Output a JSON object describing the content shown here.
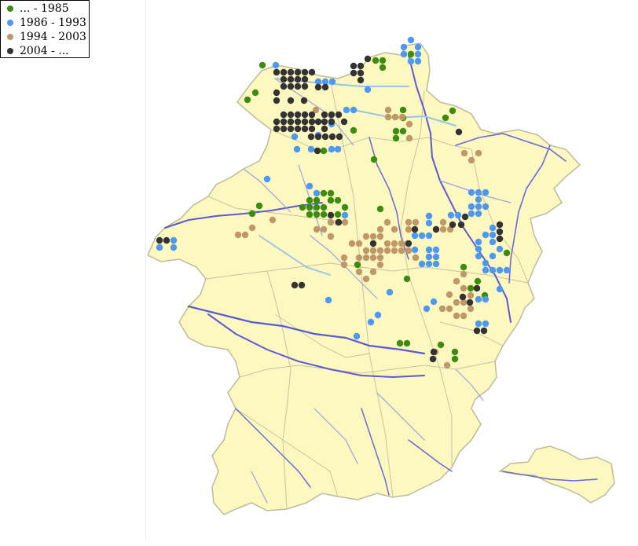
{
  "legend": {
    "items": [
      {
        "label": "... - 1985",
        "color": "#3c8c10"
      },
      {
        "label": "1986 - 1993",
        "color": "#4d98f0"
      },
      {
        "label": "1994 - 2003",
        "color": "#c09868"
      },
      {
        "label": "2004 - ...",
        "color": "#333333"
      }
    ]
  },
  "map_colors": {
    "land": "#fdf7c0",
    "border": "#bdbb9a",
    "river": "#5a5ad2",
    "stream": "#9aa3df",
    "canal": "#98c4e8"
  }
}
